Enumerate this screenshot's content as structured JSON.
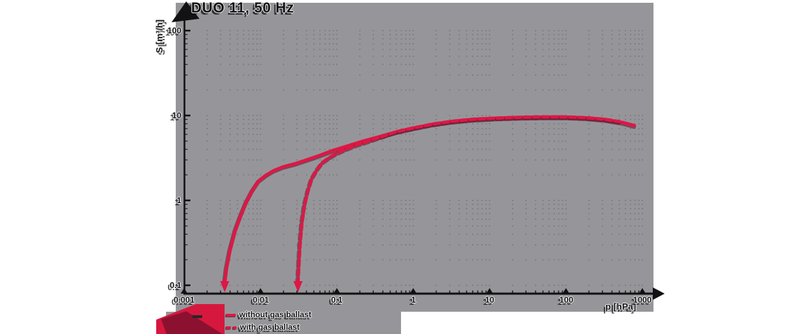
{
  "title": "DUO 11, 50 Hz",
  "colors": {
    "plot_background": "#96969a",
    "grid_dots": "#737379",
    "ink": "#121214",
    "curve_red": "#de1745",
    "curve_shadow": "#5f0c28",
    "brand_red": "#d6183f",
    "brand_dark_red": "#8c1130"
  },
  "legend": {
    "items": [
      {
        "label": "without gas ballast",
        "style": "solid"
      },
      {
        "label": "with gas ballast",
        "style": "dashed"
      }
    ]
  },
  "chart_data": {
    "type": "line",
    "title": "DUO 11, 50 Hz",
    "xlabel": "p [hPa]",
    "ylabel": "S [m³/h]",
    "x_scale": "log",
    "y_scale": "log",
    "xlim": [
      0.001,
      1000
    ],
    "ylim": [
      0.1,
      100
    ],
    "x_ticks": [
      "0.001",
      "0.01",
      "0.1",
      "1",
      "10",
      "100",
      "1000"
    ],
    "y_ticks": [
      "0.1",
      "1",
      "10",
      "100"
    ],
    "grid": "dotted log minor grid",
    "legend_position": "bottom-left",
    "series": [
      {
        "name": "without gas ballast",
        "style": "solid",
        "color": "#de1745",
        "ultimate_pressure_arrow": 0.0034,
        "points": [
          [
            0.0034,
            0.105
          ],
          [
            0.0036,
            0.16
          ],
          [
            0.004,
            0.26
          ],
          [
            0.0047,
            0.45
          ],
          [
            0.0055,
            0.66
          ],
          [
            0.0065,
            0.95
          ],
          [
            0.0078,
            1.3
          ],
          [
            0.0095,
            1.7
          ],
          [
            0.012,
            2.0
          ],
          [
            0.015,
            2.25
          ],
          [
            0.02,
            2.5
          ],
          [
            0.028,
            2.7
          ],
          [
            0.04,
            3.0
          ],
          [
            0.06,
            3.4
          ],
          [
            0.09,
            3.9
          ],
          [
            0.14,
            4.4
          ],
          [
            0.22,
            5.0
          ],
          [
            0.35,
            5.6
          ],
          [
            0.6,
            6.4
          ],
          [
            1.0,
            7.1
          ],
          [
            1.8,
            7.9
          ],
          [
            3.2,
            8.5
          ],
          [
            6,
            9.0
          ],
          [
            12,
            9.3
          ],
          [
            25,
            9.5
          ],
          [
            50,
            9.6
          ],
          [
            100,
            9.6
          ],
          [
            180,
            9.4
          ],
          [
            320,
            9.0
          ],
          [
            550,
            8.3
          ],
          [
            790,
            7.6
          ]
        ]
      },
      {
        "name": "with gas ballast",
        "style": "dashed",
        "color": "#de1745",
        "ultimate_pressure_arrow": 0.031,
        "points": [
          [
            0.031,
            0.105
          ],
          [
            0.032,
            0.18
          ],
          [
            0.033,
            0.3
          ],
          [
            0.035,
            0.55
          ],
          [
            0.038,
            0.9
          ],
          [
            0.042,
            1.3
          ],
          [
            0.047,
            1.8
          ],
          [
            0.055,
            2.3
          ],
          [
            0.065,
            2.8
          ],
          [
            0.08,
            3.2
          ],
          [
            0.1,
            3.6
          ],
          [
            0.13,
            4.0
          ],
          [
            0.18,
            4.5
          ],
          [
            0.26,
            5.0
          ],
          [
            0.4,
            5.7
          ],
          [
            0.6,
            6.45
          ],
          [
            1.0,
            7.15
          ],
          [
            1.8,
            7.95
          ],
          [
            3.2,
            8.55
          ],
          [
            6,
            9.05
          ],
          [
            12,
            9.35
          ],
          [
            25,
            9.55
          ],
          [
            50,
            9.65
          ],
          [
            100,
            9.65
          ],
          [
            180,
            9.45
          ],
          [
            320,
            9.05
          ],
          [
            500,
            8.5
          ]
        ]
      }
    ]
  }
}
